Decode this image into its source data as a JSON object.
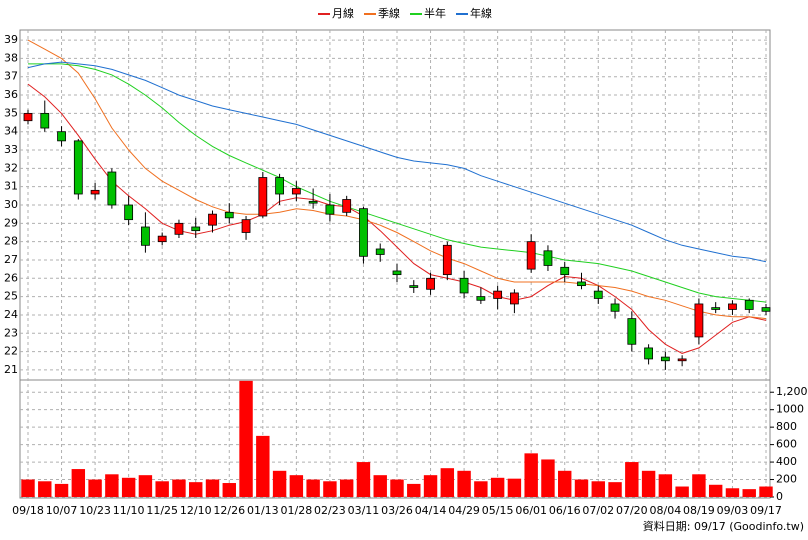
{
  "chart_data": {
    "type": "candlestick",
    "categories": [
      "09/18",
      null,
      "10/07",
      null,
      "10/23",
      null,
      "11/10",
      null,
      "11/25",
      null,
      "12/10",
      null,
      "12/26",
      null,
      "01/13",
      null,
      "01/28",
      null,
      "02/23",
      null,
      "03/11",
      null,
      "03/26",
      null,
      "04/14",
      null,
      "04/29",
      null,
      "05/15",
      null,
      "06/01",
      null,
      "06/16",
      null,
      "07/02",
      null,
      "07/20",
      null,
      "08/04",
      null,
      "08/19",
      null,
      "09/03",
      null,
      "09/17"
    ],
    "open": [
      34.6,
      35.0,
      34.0,
      33.5,
      30.6,
      31.8,
      30.0,
      28.8,
      28.0,
      28.4,
      28.8,
      28.9,
      29.6,
      28.5,
      29.4,
      31.5,
      30.6,
      30.2,
      30.0,
      29.6,
      29.8,
      27.6,
      26.4,
      25.6,
      25.4,
      26.2,
      26.0,
      25.0,
      24.9,
      24.6,
      26.5,
      27.5,
      26.6,
      25.8,
      25.3,
      24.6,
      23.8,
      22.2,
      21.7,
      21.5,
      22.8,
      24.4,
      24.3,
      24.8,
      24.4
    ],
    "high": [
      35.2,
      35.7,
      34.3,
      33.6,
      31.2,
      32.0,
      30.5,
      29.6,
      28.5,
      29.2,
      29.3,
      29.7,
      30.1,
      29.4,
      31.8,
      31.7,
      31.3,
      30.9,
      30.6,
      30.5,
      29.9,
      27.9,
      26.8,
      25.9,
      26.3,
      28.0,
      26.4,
      25.5,
      25.6,
      25.4,
      28.4,
      27.8,
      26.9,
      26.3,
      25.6,
      24.9,
      24.2,
      22.4,
      22.0,
      21.8,
      24.9,
      24.7,
      24.8,
      24.9,
      24.6
    ],
    "low": [
      34.4,
      34.0,
      33.2,
      30.3,
      30.3,
      29.8,
      28.9,
      27.4,
      27.8,
      28.2,
      28.2,
      28.5,
      29.0,
      28.1,
      29.3,
      30.0,
      30.2,
      29.8,
      29.1,
      29.4,
      26.8,
      26.9,
      25.8,
      25.2,
      25.1,
      25.9,
      24.9,
      24.6,
      24.3,
      24.1,
      26.3,
      26.4,
      25.8,
      25.4,
      24.6,
      23.8,
      22.0,
      21.3,
      21.0,
      21.2,
      22.4,
      24.1,
      24.0,
      24.1,
      24.0
    ],
    "close": [
      35.0,
      34.2,
      33.5,
      30.6,
      30.8,
      30.0,
      29.2,
      27.8,
      28.3,
      29.0,
      28.6,
      29.5,
      29.3,
      29.2,
      31.5,
      30.6,
      30.9,
      30.1,
      29.5,
      30.3,
      27.2,
      27.3,
      26.2,
      25.5,
      26.0,
      27.8,
      25.2,
      24.8,
      25.3,
      25.2,
      28.0,
      26.7,
      26.2,
      25.6,
      24.9,
      24.2,
      22.4,
      21.6,
      21.5,
      21.6,
      24.6,
      24.3,
      24.6,
      24.3,
      24.2
    ],
    "up_color": "#ff0000",
    "down_color": "#00c000",
    "ylim": [
      20.45,
      39.55
    ],
    "yticks": [
      21,
      22,
      23,
      24,
      25,
      26,
      27,
      28,
      29,
      30,
      31,
      32,
      33,
      34,
      35,
      36,
      37,
      38,
      39
    ],
    "grid": true,
    "series": [
      {
        "name": "月線",
        "color": "#e02020",
        "values": [
          36.6,
          35.9,
          35.0,
          33.8,
          32.5,
          31.3,
          30.5,
          29.8,
          29.0,
          28.6,
          28.4,
          28.6,
          28.9,
          29.1,
          29.5,
          30.2,
          30.4,
          30.3,
          30.0,
          29.9,
          29.4,
          28.6,
          27.7,
          26.8,
          26.2,
          26.0,
          25.8,
          25.5,
          25.0,
          24.8,
          25.0,
          25.6,
          26.1,
          26.0,
          25.6,
          25.0,
          24.3,
          23.2,
          22.4,
          21.9,
          22.2,
          22.9,
          23.6,
          23.9,
          23.7
        ]
      },
      {
        "name": "季線",
        "color": "#f07020",
        "values": [
          39.0,
          38.5,
          38.0,
          37.2,
          35.8,
          34.2,
          33.0,
          32.0,
          31.3,
          30.8,
          30.3,
          29.9,
          29.6,
          29.5,
          29.5,
          29.6,
          29.8,
          29.7,
          29.5,
          29.4,
          29.2,
          28.9,
          28.5,
          28.0,
          27.5,
          27.1,
          26.8,
          26.4,
          26.0,
          25.8,
          25.8,
          25.8,
          25.8,
          25.7,
          25.6,
          25.5,
          25.3,
          25.0,
          24.8,
          24.5,
          24.2,
          24.0,
          23.9,
          23.9,
          23.8
        ]
      },
      {
        "name": "半年",
        "color": "#20d020",
        "values": [
          37.7,
          37.7,
          37.7,
          37.6,
          37.4,
          37.1,
          36.6,
          36.0,
          35.3,
          34.5,
          33.8,
          33.2,
          32.7,
          32.3,
          31.9,
          31.5,
          31.0,
          30.6,
          30.2,
          29.9,
          29.6,
          29.3,
          29.0,
          28.7,
          28.4,
          28.1,
          27.9,
          27.7,
          27.6,
          27.5,
          27.4,
          27.2,
          27.0,
          26.9,
          26.8,
          26.6,
          26.4,
          26.1,
          25.8,
          25.5,
          25.2,
          25.0,
          24.9,
          24.8,
          24.7
        ]
      },
      {
        "name": "年線",
        "color": "#2070d0",
        "values": [
          37.5,
          37.7,
          37.8,
          37.7,
          37.6,
          37.4,
          37.1,
          36.8,
          36.4,
          36.0,
          35.7,
          35.4,
          35.2,
          35.0,
          34.8,
          34.6,
          34.4,
          34.1,
          33.8,
          33.5,
          33.2,
          32.9,
          32.6,
          32.4,
          32.3,
          32.2,
          32.0,
          31.6,
          31.3,
          31.0,
          30.7,
          30.4,
          30.1,
          29.8,
          29.5,
          29.2,
          28.9,
          28.5,
          28.1,
          27.8,
          27.6,
          27.4,
          27.2,
          27.1,
          26.9
        ]
      }
    ],
    "volume": {
      "color": "#ff0000",
      "values": [
        200,
        180,
        150,
        320,
        200,
        260,
        220,
        250,
        180,
        200,
        170,
        200,
        160,
        1330,
        700,
        300,
        250,
        200,
        180,
        200,
        400,
        250,
        200,
        150,
        250,
        330,
        300,
        180,
        220,
        210,
        500,
        430,
        300,
        200,
        180,
        170,
        400,
        300,
        260,
        120,
        260,
        140,
        100,
        90,
        120
      ],
      "ylim": [
        0,
        1340
      ],
      "yticks": [
        0,
        200,
        400,
        600,
        800,
        1000,
        {
          "value": 1200,
          "label": "1,200"
        }
      ]
    },
    "footer": "資料日期: 09/17 (Goodinfo.tw)"
  }
}
